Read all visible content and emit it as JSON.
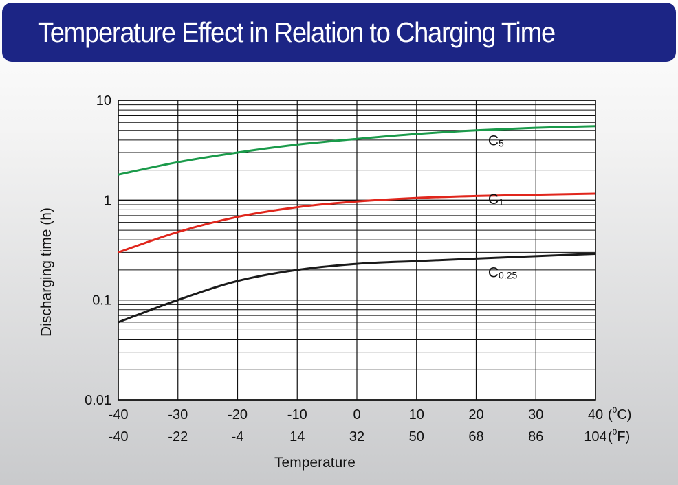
{
  "header": {
    "title": "Temperature Effect in Relation to Charging Time"
  },
  "chart_data": {
    "type": "line",
    "title": "Temperature Effect in Relation to Charging Time",
    "xlabel": "Temperature",
    "ylabel": "Discharging time (h)",
    "y_scale": "log",
    "ylim": [
      0.01,
      10
    ],
    "xlim": [
      -40,
      40
    ],
    "grid": true,
    "x_ticks_c": [
      "-40",
      "-30",
      "-20",
      "-10",
      "0",
      "10",
      "20",
      "30",
      "40"
    ],
    "x_ticks_f": [
      "-40",
      "-22",
      "-4",
      "14",
      "32",
      "50",
      "68",
      "86",
      "104"
    ],
    "x_unit_c": "(0C)",
    "x_unit_f": "(0F)",
    "y_ticks": [
      "10",
      "1",
      "0.1",
      "0.01"
    ],
    "series": [
      {
        "name": "C5",
        "name_main": "C",
        "name_sub": "5",
        "color": "#1a9a4a",
        "x": [
          -40,
          -30,
          -20,
          -10,
          0,
          10,
          20,
          30,
          40
        ],
        "y": [
          1.8,
          2.4,
          3.0,
          3.6,
          4.1,
          4.6,
          5.0,
          5.3,
          5.5
        ]
      },
      {
        "name": "C1",
        "name_main": "C",
        "name_sub": "1",
        "color": "#e0261c",
        "x": [
          -40,
          -30,
          -20,
          -10,
          0,
          10,
          20,
          30,
          40
        ],
        "y": [
          0.3,
          0.48,
          0.68,
          0.85,
          0.97,
          1.05,
          1.1,
          1.13,
          1.16
        ]
      },
      {
        "name": "C0.25",
        "name_main": "C",
        "name_sub": "0.25",
        "color": "#1a1a1a",
        "x": [
          -40,
          -30,
          -20,
          -10,
          0,
          10,
          20,
          30,
          40
        ],
        "y": [
          0.06,
          0.1,
          0.155,
          0.2,
          0.23,
          0.245,
          0.26,
          0.275,
          0.29
        ]
      }
    ]
  }
}
